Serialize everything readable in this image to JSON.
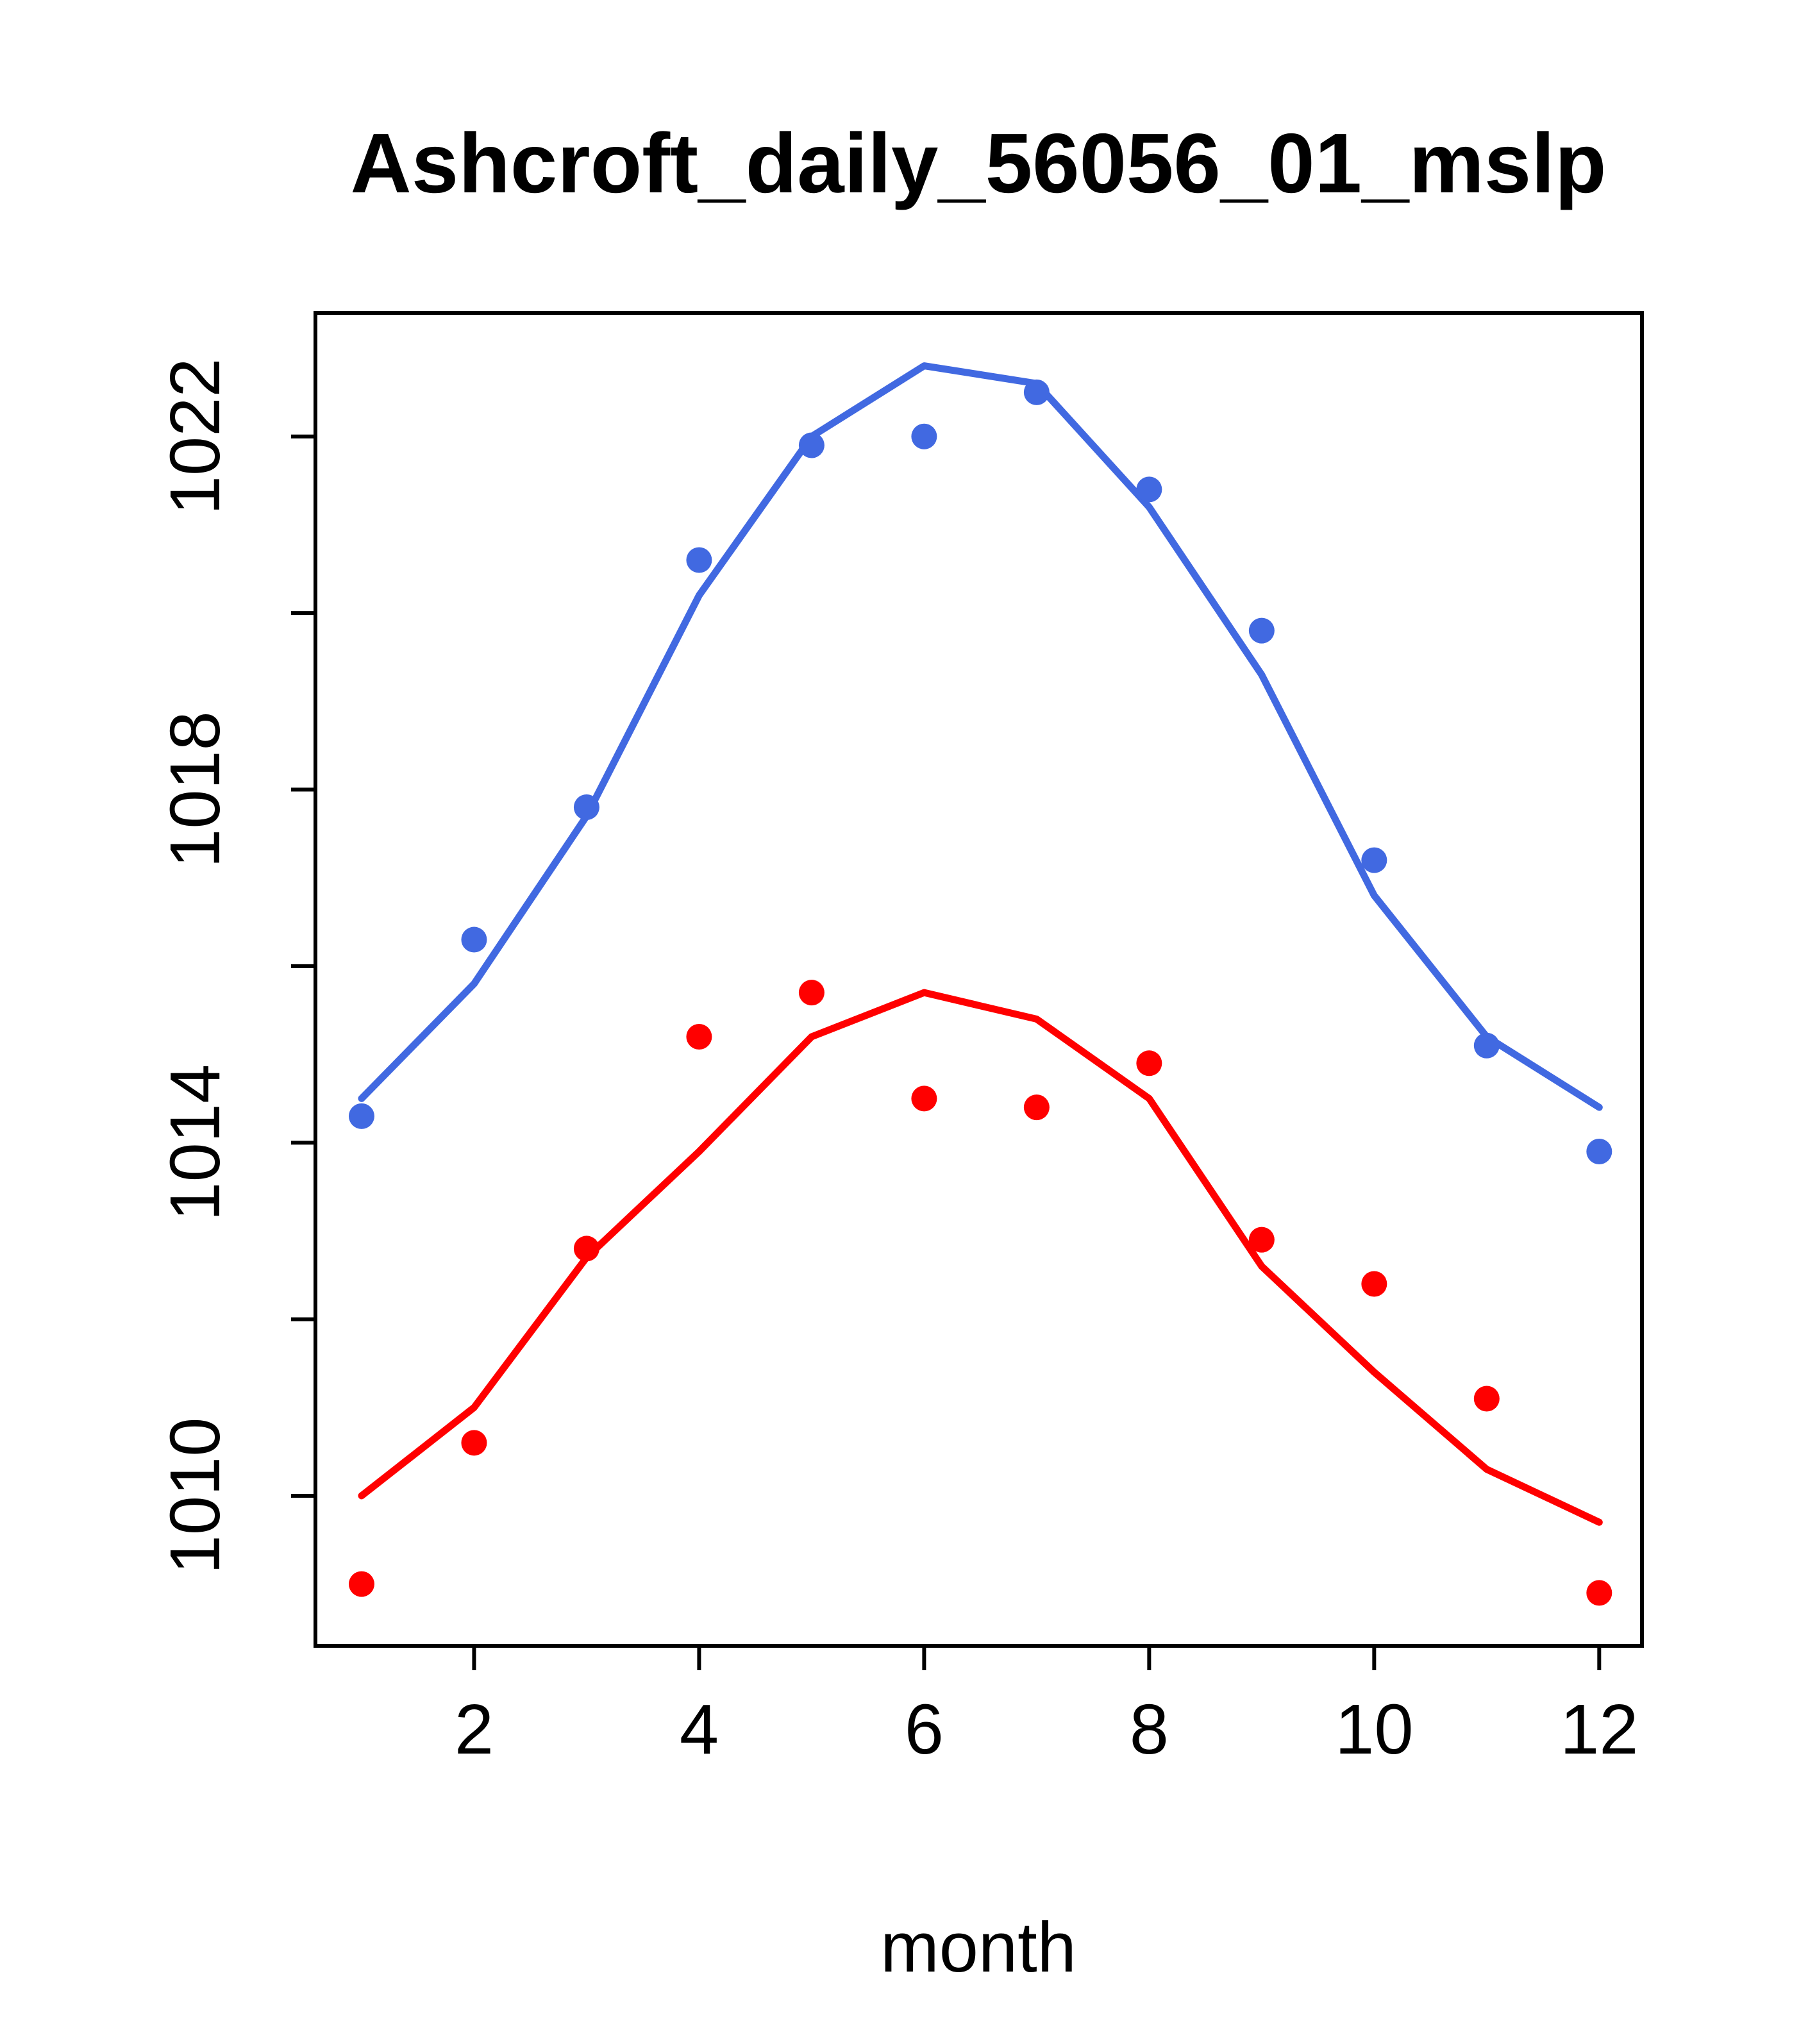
{
  "page": {
    "background": "#ffffff"
  },
  "chart_data": {
    "type": "scatter",
    "title": "Ashcroft_daily_56056_01_mslp",
    "xlabel": "month",
    "ylabel": "",
    "xlim": [
      0.59,
      12.38
    ],
    "ylim": [
      1008.3,
      1023.4
    ],
    "x_ticks": [
      2,
      4,
      6,
      8,
      10,
      12
    ],
    "y_ticks": [
      1010,
      1012,
      1014,
      1016,
      1018,
      1020,
      1022
    ],
    "y_labeled_ticks": [
      1010,
      1014,
      1018,
      1022
    ],
    "grid": false,
    "legend": "none",
    "x": [
      1,
      2,
      3,
      4,
      5,
      6,
      7,
      8,
      9,
      10,
      11,
      12
    ],
    "series": [
      {
        "name": "blue-smoothed-line",
        "kind": "line",
        "color": "#4169e1",
        "values": [
          1014.5,
          1015.8,
          1017.7,
          1020.2,
          1022.0,
          1022.8,
          1022.6,
          1021.2,
          1019.3,
          1016.8,
          1015.2,
          1014.4
        ]
      },
      {
        "name": "blue-monthly-points",
        "kind": "points",
        "color": "#4169e1",
        "values": [
          1014.3,
          1016.3,
          1017.8,
          1020.6,
          1021.9,
          1022.0,
          1022.5,
          1021.4,
          1019.8,
          1017.2,
          1015.1,
          1013.9
        ]
      },
      {
        "name": "red-smoothed-line",
        "kind": "line",
        "color": "#ff0000",
        "values": [
          1010.0,
          1011.0,
          1012.7,
          1013.9,
          1015.2,
          1015.7,
          1015.4,
          1014.5,
          1012.6,
          1011.4,
          1010.3,
          1009.7
        ]
      },
      {
        "name": "red-monthly-points",
        "kind": "points",
        "color": "#ff0000",
        "values": [
          1009.0,
          1010.6,
          1012.8,
          1015.2,
          1015.7,
          1014.5,
          1014.4,
          1014.9,
          1012.9,
          1012.4,
          1011.1,
          1008.9
        ]
      }
    ],
    "style": {
      "axis_color": "#000000",
      "point_series_marker": "filled-circle"
    }
  }
}
